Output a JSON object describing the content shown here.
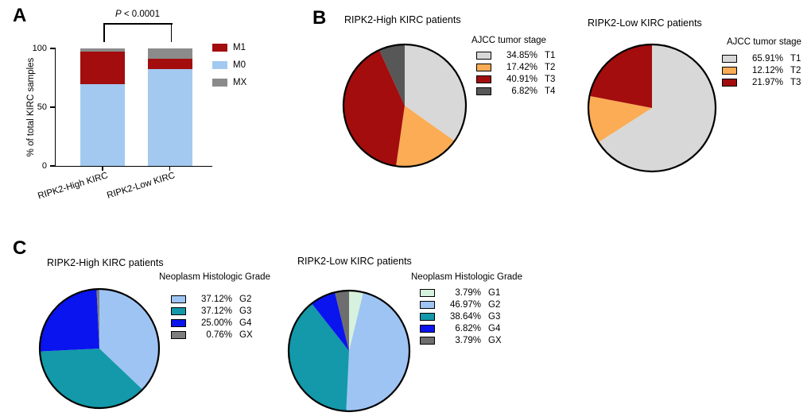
{
  "panels": {
    "a": {
      "letter": "A"
    },
    "b": {
      "letter": "B"
    },
    "c": {
      "letter": "C"
    }
  },
  "chart_data": [
    {
      "type": "bar",
      "stacked": true,
      "panel": "A",
      "categories": [
        "RIPK2-High KIRC",
        "RIPK2-Low KIRC"
      ],
      "series": [
        {
          "name": "M1",
          "color": "#a30d0d",
          "values": [
            27.27,
            8.33
          ]
        },
        {
          "name": "M0",
          "color": "#a3c9f0",
          "values": [
            69.7,
            82.58
          ]
        },
        {
          "name": "MX",
          "color": "#8b8b8b",
          "values": [
            3.03,
            9.09
          ]
        }
      ],
      "stack_order": [
        "M0",
        "M1",
        "MX"
      ],
      "ylabel": "% of total KIRC samples",
      "xlabel": "",
      "ylim": [
        0,
        100
      ],
      "yticks": [
        0,
        50,
        100
      ],
      "annotation": "P < 0.0001",
      "legend_position": "right",
      "grid": false
    },
    {
      "type": "pie",
      "panel": "B",
      "title": "RIPK2-High KIRC patients",
      "legend_title": "AJCC tumor stage",
      "slices": [
        {
          "label": "T1",
          "pct": 34.85,
          "color": "#d8d8d8"
        },
        {
          "label": "T2",
          "pct": 17.42,
          "color": "#fbac55"
        },
        {
          "label": "T3",
          "pct": 40.91,
          "color": "#a30d0d"
        },
        {
          "label": "T4",
          "pct": 6.82,
          "color": "#575757"
        }
      ]
    },
    {
      "type": "pie",
      "panel": "B",
      "title": "RIPK2-Low KIRC patients",
      "legend_title": "AJCC tumor stage",
      "slices": [
        {
          "label": "T1",
          "pct": 65.91,
          "color": "#d8d8d8"
        },
        {
          "label": "T2",
          "pct": 12.12,
          "color": "#fbac55"
        },
        {
          "label": "T3",
          "pct": 21.97,
          "color": "#a30d0d"
        }
      ]
    },
    {
      "type": "pie",
      "panel": "C",
      "title": "RIPK2-High KIRC patients",
      "legend_title": "Neoplasm Histologic Grade",
      "slices": [
        {
          "label": "G2",
          "pct": 37.12,
          "color": "#9ec4f3"
        },
        {
          "label": "G3",
          "pct": 37.12,
          "color": "#1399a9"
        },
        {
          "label": "G4",
          "pct": 25.0,
          "color": "#0a14ef"
        },
        {
          "label": "GX",
          "pct": 0.76,
          "color": "#7d7d7d"
        }
      ]
    },
    {
      "type": "pie",
      "panel": "C",
      "title": "RIPK2-Low KIRC patients",
      "legend_title": "Neoplasm Histologic Grade",
      "slices": [
        {
          "label": "G1",
          "pct": 3.79,
          "color": "#d6f2de"
        },
        {
          "label": "G2",
          "pct": 46.97,
          "color": "#9ec4f3"
        },
        {
          "label": "G3",
          "pct": 38.64,
          "color": "#1399a9"
        },
        {
          "label": "G4",
          "pct": 6.82,
          "color": "#0a14ef"
        },
        {
          "label": "GX",
          "pct": 3.79,
          "color": "#6e6e6e"
        }
      ]
    }
  ]
}
